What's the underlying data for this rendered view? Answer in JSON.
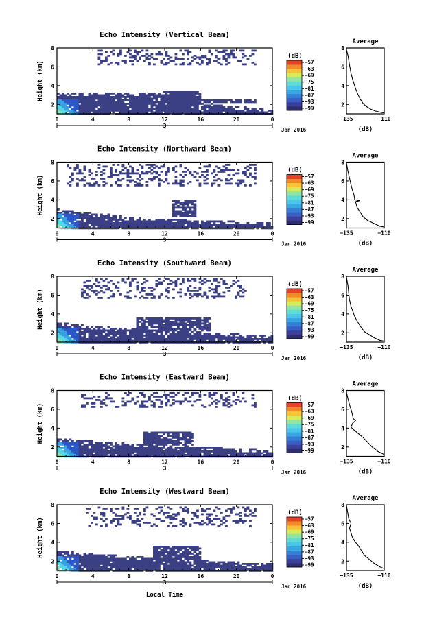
{
  "colors": {
    "echo_fill": "#3b3f84",
    "strong_echo": [
      "#2b58c9",
      "#37a0e0",
      "#52d6e6",
      "#8fe3b0"
    ],
    "axis": "#000000",
    "colorbar": [
      "#2e2d6e",
      "#3a3f9a",
      "#3a5fc4",
      "#3580d6",
      "#39a8e2",
      "#4cc6ea",
      "#5fdcd6",
      "#8fe6a6",
      "#d8ec5a",
      "#f5c438",
      "#f28a2a",
      "#e2442a"
    ]
  },
  "chart_data": [
    {
      "type": "heatmap",
      "title": "Echo Intensity (Vertical Beam)",
      "ylabel": "Height (km)",
      "xlim": [
        0,
        24
      ],
      "ylim": [
        1,
        8
      ],
      "xticks": [
        "0",
        "4",
        "8",
        "12",
        "16",
        "20",
        "0"
      ],
      "yticks": [
        "2",
        "4",
        "6",
        "8"
      ],
      "date_marker": "3",
      "date_label": "Jan 2016",
      "colorbar": {
        "unit": "(dB)",
        "ticks": [
          "−57",
          "−63",
          "−69",
          "−75",
          "−81",
          "−87",
          "−93",
          "−99"
        ]
      },
      "low_layer": [
        [
          0,
          3.3
        ],
        [
          4,
          3.3
        ],
        [
          8,
          3.3
        ],
        [
          10,
          3.4
        ],
        [
          13,
          3.5
        ],
        [
          15,
          3.5
        ],
        [
          16,
          2.4
        ],
        [
          18,
          2.0
        ],
        [
          21,
          1.8
        ],
        [
          24,
          1.6
        ]
      ],
      "echo_blocks": [
        [
          13,
          16,
          2.5,
          3.5
        ],
        [
          16,
          22,
          2.3,
          2.6
        ]
      ],
      "upper_echo": [
        [
          4.5,
          22,
          6.3,
          7.9
        ]
      ],
      "profile": {
        "title": "Average",
        "xlabel": "(dB)",
        "xticks": [
          "−135",
          "−110"
        ],
        "yticks": [
          "2",
          "4",
          "6",
          "8"
        ],
        "xlim": [
          -135,
          -110
        ],
        "ylim": [
          1,
          8
        ],
        "points": [
          [
            -135,
            7.8
          ],
          [
            -134,
            7.2
          ],
          [
            -133,
            6.2
          ],
          [
            -132.5,
            5.8
          ],
          [
            -132,
            5.3
          ],
          [
            -131,
            4.7
          ],
          [
            -130,
            4.2
          ],
          [
            -129,
            3.7
          ],
          [
            -127.5,
            3.1
          ],
          [
            -126,
            2.6
          ],
          [
            -124,
            2.1
          ],
          [
            -122,
            1.8
          ],
          [
            -119,
            1.5
          ],
          [
            -116,
            1.3
          ],
          [
            -112,
            1.15
          ],
          [
            -110,
            1.1
          ]
        ]
      }
    },
    {
      "type": "heatmap",
      "title": "Echo Intensity (Northward Beam)",
      "ylabel": "Height (km)",
      "xlim": [
        0,
        24
      ],
      "ylim": [
        1,
        8
      ],
      "xticks": [
        "0",
        "4",
        "8",
        "12",
        "16",
        "20",
        "0"
      ],
      "yticks": [
        "2",
        "4",
        "6",
        "8"
      ],
      "date_marker": "3",
      "date_label": "Jan 2016",
      "colorbar": {
        "unit": "(dB)",
        "ticks": [
          "−57",
          "−63",
          "−69",
          "−75",
          "−81",
          "−87",
          "−93",
          "−99"
        ]
      },
      "low_layer": [
        [
          0,
          3.1
        ],
        [
          4,
          2.7
        ],
        [
          6,
          2.5
        ],
        [
          8,
          2.2
        ],
        [
          12,
          2.1
        ],
        [
          16,
          1.9
        ],
        [
          20,
          1.8
        ],
        [
          24,
          1.7
        ]
      ],
      "echo_blocks": [
        [
          12.8,
          15.5,
          2.3,
          4.0
        ]
      ],
      "upper_echo": [
        [
          1,
          22,
          5.5,
          7.9
        ]
      ],
      "profile": {
        "title": "Average",
        "xlabel": "(dB)",
        "xticks": [
          "−135",
          "−110"
        ],
        "yticks": [
          "2",
          "4",
          "6",
          "8"
        ],
        "xlim": [
          -135,
          -110
        ],
        "ylim": [
          1,
          8
        ],
        "points": [
          [
            -135,
            7.9
          ],
          [
            -134,
            7.0
          ],
          [
            -133,
            6.3
          ],
          [
            -132,
            5.6
          ],
          [
            -131,
            5.0
          ],
          [
            -130,
            4.5
          ],
          [
            -129.5,
            4.0
          ],
          [
            -126,
            3.9
          ],
          [
            -129,
            3.8
          ],
          [
            -128,
            3.2
          ],
          [
            -126,
            2.7
          ],
          [
            -124,
            2.2
          ],
          [
            -121,
            1.8
          ],
          [
            -117,
            1.5
          ],
          [
            -113,
            1.2
          ],
          [
            -110,
            1.1
          ]
        ]
      }
    },
    {
      "type": "heatmap",
      "title": "Echo Intensity (Southward Beam)",
      "ylabel": "Height (km)",
      "xlim": [
        0,
        24
      ],
      "ylim": [
        1,
        8
      ],
      "xticks": [
        "0",
        "4",
        "8",
        "12",
        "16",
        "20",
        "0"
      ],
      "yticks": [
        "2",
        "4",
        "6",
        "8"
      ],
      "date_marker": "3",
      "date_label": "Jan 2016",
      "colorbar": {
        "unit": "(dB)",
        "ticks": [
          "−57",
          "−63",
          "−69",
          "−75",
          "−81",
          "−87",
          "−93",
          "−99"
        ]
      },
      "low_layer": [
        [
          0,
          3.2
        ],
        [
          4,
          2.8
        ],
        [
          8,
          2.6
        ],
        [
          12,
          2.4
        ],
        [
          16,
          2.2
        ],
        [
          20,
          2.0
        ],
        [
          24,
          1.8
        ]
      ],
      "echo_blocks": [
        [
          8.8,
          17,
          2.3,
          3.8
        ]
      ],
      "upper_echo": [
        [
          2.5,
          21,
          5.8,
          7.9
        ]
      ],
      "profile": {
        "title": "Average",
        "xlabel": "(dB)",
        "xticks": [
          "−135",
          "−110"
        ],
        "yticks": [
          "2",
          "4",
          "6",
          "8"
        ],
        "xlim": [
          -135,
          -110
        ],
        "ylim": [
          1,
          8
        ],
        "points": [
          [
            -135,
            7.9
          ],
          [
            -134,
            7.0
          ],
          [
            -133.5,
            6.2
          ],
          [
            -133,
            5.5
          ],
          [
            -132,
            4.8
          ],
          [
            -131,
            4.4
          ],
          [
            -130,
            3.9
          ],
          [
            -128.5,
            3.4
          ],
          [
            -127,
            3.0
          ],
          [
            -125,
            2.5
          ],
          [
            -123,
            2.1
          ],
          [
            -120,
            1.8
          ],
          [
            -117,
            1.5
          ],
          [
            -113,
            1.2
          ],
          [
            -110,
            1.1
          ]
        ]
      }
    },
    {
      "type": "heatmap",
      "title": "Echo Intensity (Eastward Beam)",
      "ylabel": "Height (km)",
      "xlim": [
        0,
        24
      ],
      "ylim": [
        1,
        8
      ],
      "xticks": [
        "0",
        "4",
        "8",
        "12",
        "16",
        "20",
        "0"
      ],
      "yticks": [
        "2",
        "4",
        "6",
        "8"
      ],
      "date_marker": "3",
      "date_label": "Jan 2016",
      "colorbar": {
        "unit": "(dB)",
        "ticks": [
          "−57",
          "−63",
          "−69",
          "−75",
          "−81",
          "−87",
          "−93",
          "−99"
        ]
      },
      "low_layer": [
        [
          0,
          3.0
        ],
        [
          4,
          2.7
        ],
        [
          8,
          2.5
        ],
        [
          12,
          2.3
        ],
        [
          16,
          2.1
        ],
        [
          20,
          1.9
        ],
        [
          24,
          1.7
        ]
      ],
      "echo_blocks": [
        [
          9.5,
          15,
          2.3,
          3.8
        ]
      ],
      "upper_echo": [
        [
          2.5,
          22,
          6.2,
          7.9
        ]
      ],
      "profile": {
        "title": "Average",
        "xlabel": "(dB)",
        "xticks": [
          "−135",
          "−110"
        ],
        "yticks": [
          "2",
          "4",
          "6",
          "8"
        ],
        "xlim": [
          -135,
          -110
        ],
        "ylim": [
          1,
          8
        ],
        "points": [
          [
            -135,
            7.8
          ],
          [
            -134,
            7.1
          ],
          [
            -133,
            6.5
          ],
          [
            -132,
            6.0
          ],
          [
            -131,
            5.4
          ],
          [
            -130.5,
            5.0
          ],
          [
            -129,
            4.8
          ],
          [
            -131,
            4.5
          ],
          [
            -132,
            4.1
          ],
          [
            -130,
            3.8
          ],
          [
            -127,
            3.4
          ],
          [
            -124,
            3.0
          ],
          [
            -121,
            2.5
          ],
          [
            -118,
            2.0
          ],
          [
            -114,
            1.5
          ],
          [
            -110,
            1.2
          ]
        ]
      }
    },
    {
      "type": "heatmap",
      "title": "Echo Intensity (Westward Beam)",
      "ylabel": "Height (km)",
      "xlim": [
        0,
        24
      ],
      "ylim": [
        1,
        8
      ],
      "xticks": [
        "0",
        "4",
        "8",
        "12",
        "16",
        "20",
        "0"
      ],
      "yticks": [
        "2",
        "4",
        "6",
        "8"
      ],
      "date_marker": "3",
      "date_label": "Jan 2016",
      "xlabel": "Local Time",
      "colorbar": {
        "unit": "(dB)",
        "ticks": [
          "−57",
          "−63",
          "−69",
          "−75",
          "−81",
          "−87",
          "−93",
          "−99"
        ]
      },
      "low_layer": [
        [
          0,
          3.2
        ],
        [
          4,
          2.9
        ],
        [
          8,
          2.6
        ],
        [
          12,
          2.4
        ],
        [
          16,
          2.2
        ],
        [
          20,
          2.0
        ],
        [
          24,
          1.8
        ]
      ],
      "echo_blocks": [
        [
          10.5,
          16,
          2.3,
          3.8
        ]
      ],
      "upper_echo": [
        [
          3,
          22,
          5.8,
          7.9
        ]
      ],
      "profile": {
        "title": "Average",
        "xlabel": "(dB)",
        "xticks": [
          "−135",
          "−110"
        ],
        "yticks": [
          "2",
          "4",
          "6",
          "8"
        ],
        "xlim": [
          -135,
          -110
        ],
        "ylim": [
          1,
          8
        ],
        "points": [
          [
            -135,
            7.9
          ],
          [
            -134,
            7.0
          ],
          [
            -133.5,
            6.5
          ],
          [
            -132,
            6.0
          ],
          [
            -133,
            5.5
          ],
          [
            -132,
            5.0
          ],
          [
            -131,
            4.5
          ],
          [
            -129,
            4.0
          ],
          [
            -127,
            3.6
          ],
          [
            -125,
            3.1
          ],
          [
            -123,
            2.6
          ],
          [
            -120,
            2.2
          ],
          [
            -117,
            1.8
          ],
          [
            -113,
            1.4
          ],
          [
            -110,
            1.2
          ]
        ]
      }
    }
  ]
}
